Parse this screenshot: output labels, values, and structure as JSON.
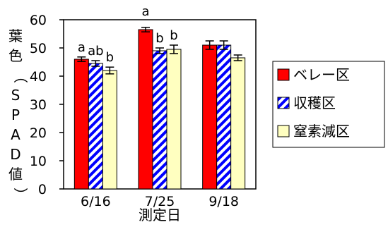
{
  "chart_data": {
    "type": "bar",
    "xlabel": "測定日",
    "ylabel": "葉色（SPAD値）",
    "ylim": [
      0,
      60
    ],
    "yticks": [
      0,
      10,
      20,
      30,
      40,
      50,
      60
    ],
    "grid": false,
    "legend_position": "right",
    "categories": [
      "6/16",
      "7/25",
      "9/18"
    ],
    "series": [
      {
        "name": "ベレー区",
        "fill": "#ff0000",
        "pattern": "solid",
        "values": [
          46,
          56.5,
          51
        ],
        "errors": [
          0.8,
          0.8,
          1.5
        ],
        "labels": [
          "a",
          "a",
          ""
        ]
      },
      {
        "name": "収穫区",
        "fill": "#0000ff",
        "pattern": "diagonal-stripes",
        "values": [
          44.5,
          49,
          51
        ],
        "errors": [
          1.0,
          1.0,
          1.5
        ],
        "labels": [
          "ab",
          "b",
          ""
        ]
      },
      {
        "name": "窒素減区",
        "fill": "#ffffc0",
        "pattern": "solid",
        "values": [
          42,
          49.5,
          46.5
        ],
        "errors": [
          1.2,
          1.5,
          1.0
        ],
        "labels": [
          "b",
          "b",
          ""
        ]
      }
    ]
  }
}
